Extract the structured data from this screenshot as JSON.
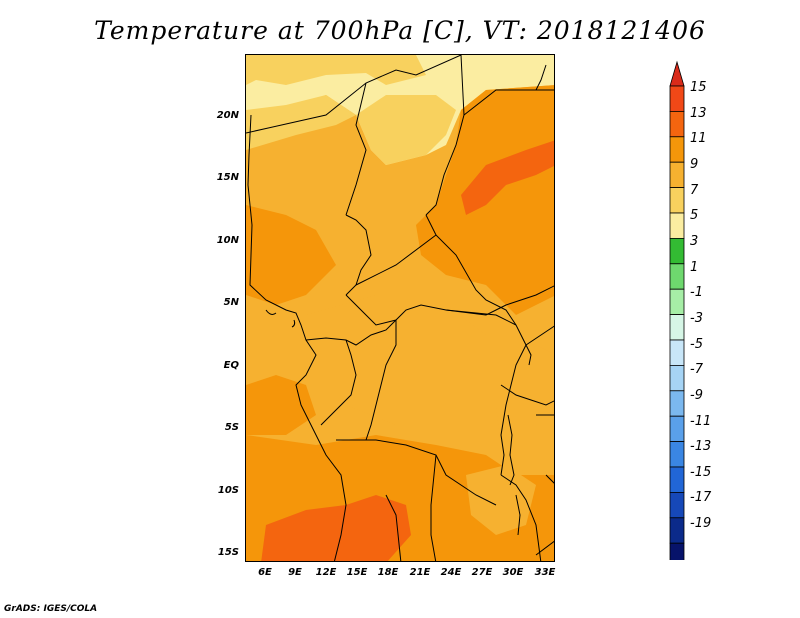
{
  "title": "Temperature at 700hPa [C], VT: 2018121406",
  "credit": "GrADS: IGES/COLA",
  "lat_labels": [
    "20N",
    "15N",
    "10N",
    "5N",
    "EQ",
    "5S",
    "10S",
    "15S"
  ],
  "lon_labels": [
    "6E",
    "9E",
    "12E",
    "15E",
    "18E",
    "21E",
    "24E",
    "27E",
    "30E",
    "33E"
  ],
  "colorbar": {
    "labels": [
      "15",
      "13",
      "11",
      "9",
      "7",
      "5",
      "3",
      "1",
      "-1",
      "-3",
      "-5",
      "-7",
      "-9",
      "-11",
      "-13",
      "-15",
      "-17",
      "-19"
    ],
    "colors": [
      "#d92b1a",
      "#f14817",
      "#f4650f",
      "#f5960a",
      "#f6b130",
      "#f8d15e",
      "#fbeda1",
      "#33bb33",
      "#6ed86e",
      "#a6eea6",
      "#d6f6e6",
      "#c8e6f8",
      "#a6d4f5",
      "#7bb8ef",
      "#5aa0ea",
      "#3a86e3",
      "#2166d6",
      "#1648b8",
      "#0b2a8a",
      "#07136a"
    ],
    "under_color": "#e4e0fb"
  },
  "colors": {
    "deep_orange": "#f4650f",
    "orange": "#f5960a",
    "light_orange": "#f6b130",
    "yellow": "#f8d15e",
    "pale_yellow": "#fbeda1"
  }
}
